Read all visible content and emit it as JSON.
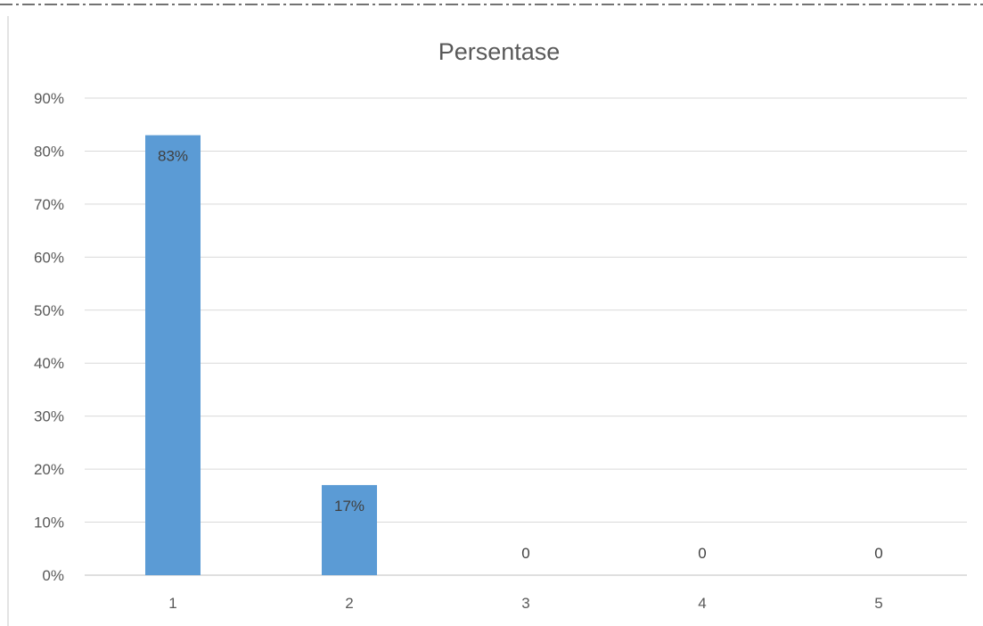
{
  "chart_data": {
    "type": "bar",
    "title": "Persentase",
    "xlabel": "",
    "ylabel": "",
    "categories": [
      "1",
      "2",
      "3",
      "4",
      "5"
    ],
    "values": [
      83,
      17,
      0,
      0,
      0
    ],
    "data_labels": [
      "83%",
      "17%",
      "0",
      "0",
      "0"
    ],
    "y_ticks": [
      "0%",
      "10%",
      "20%",
      "30%",
      "40%",
      "50%",
      "60%",
      "70%",
      "80%",
      "90%"
    ],
    "y_unit": "%",
    "ylim": [
      0,
      90
    ],
    "grid": true,
    "legend": "none",
    "bar_color": "#5B9BD5",
    "gridline_color": "#D9D9D9",
    "text_color": "#595959",
    "border_style": "dash-dot"
  }
}
